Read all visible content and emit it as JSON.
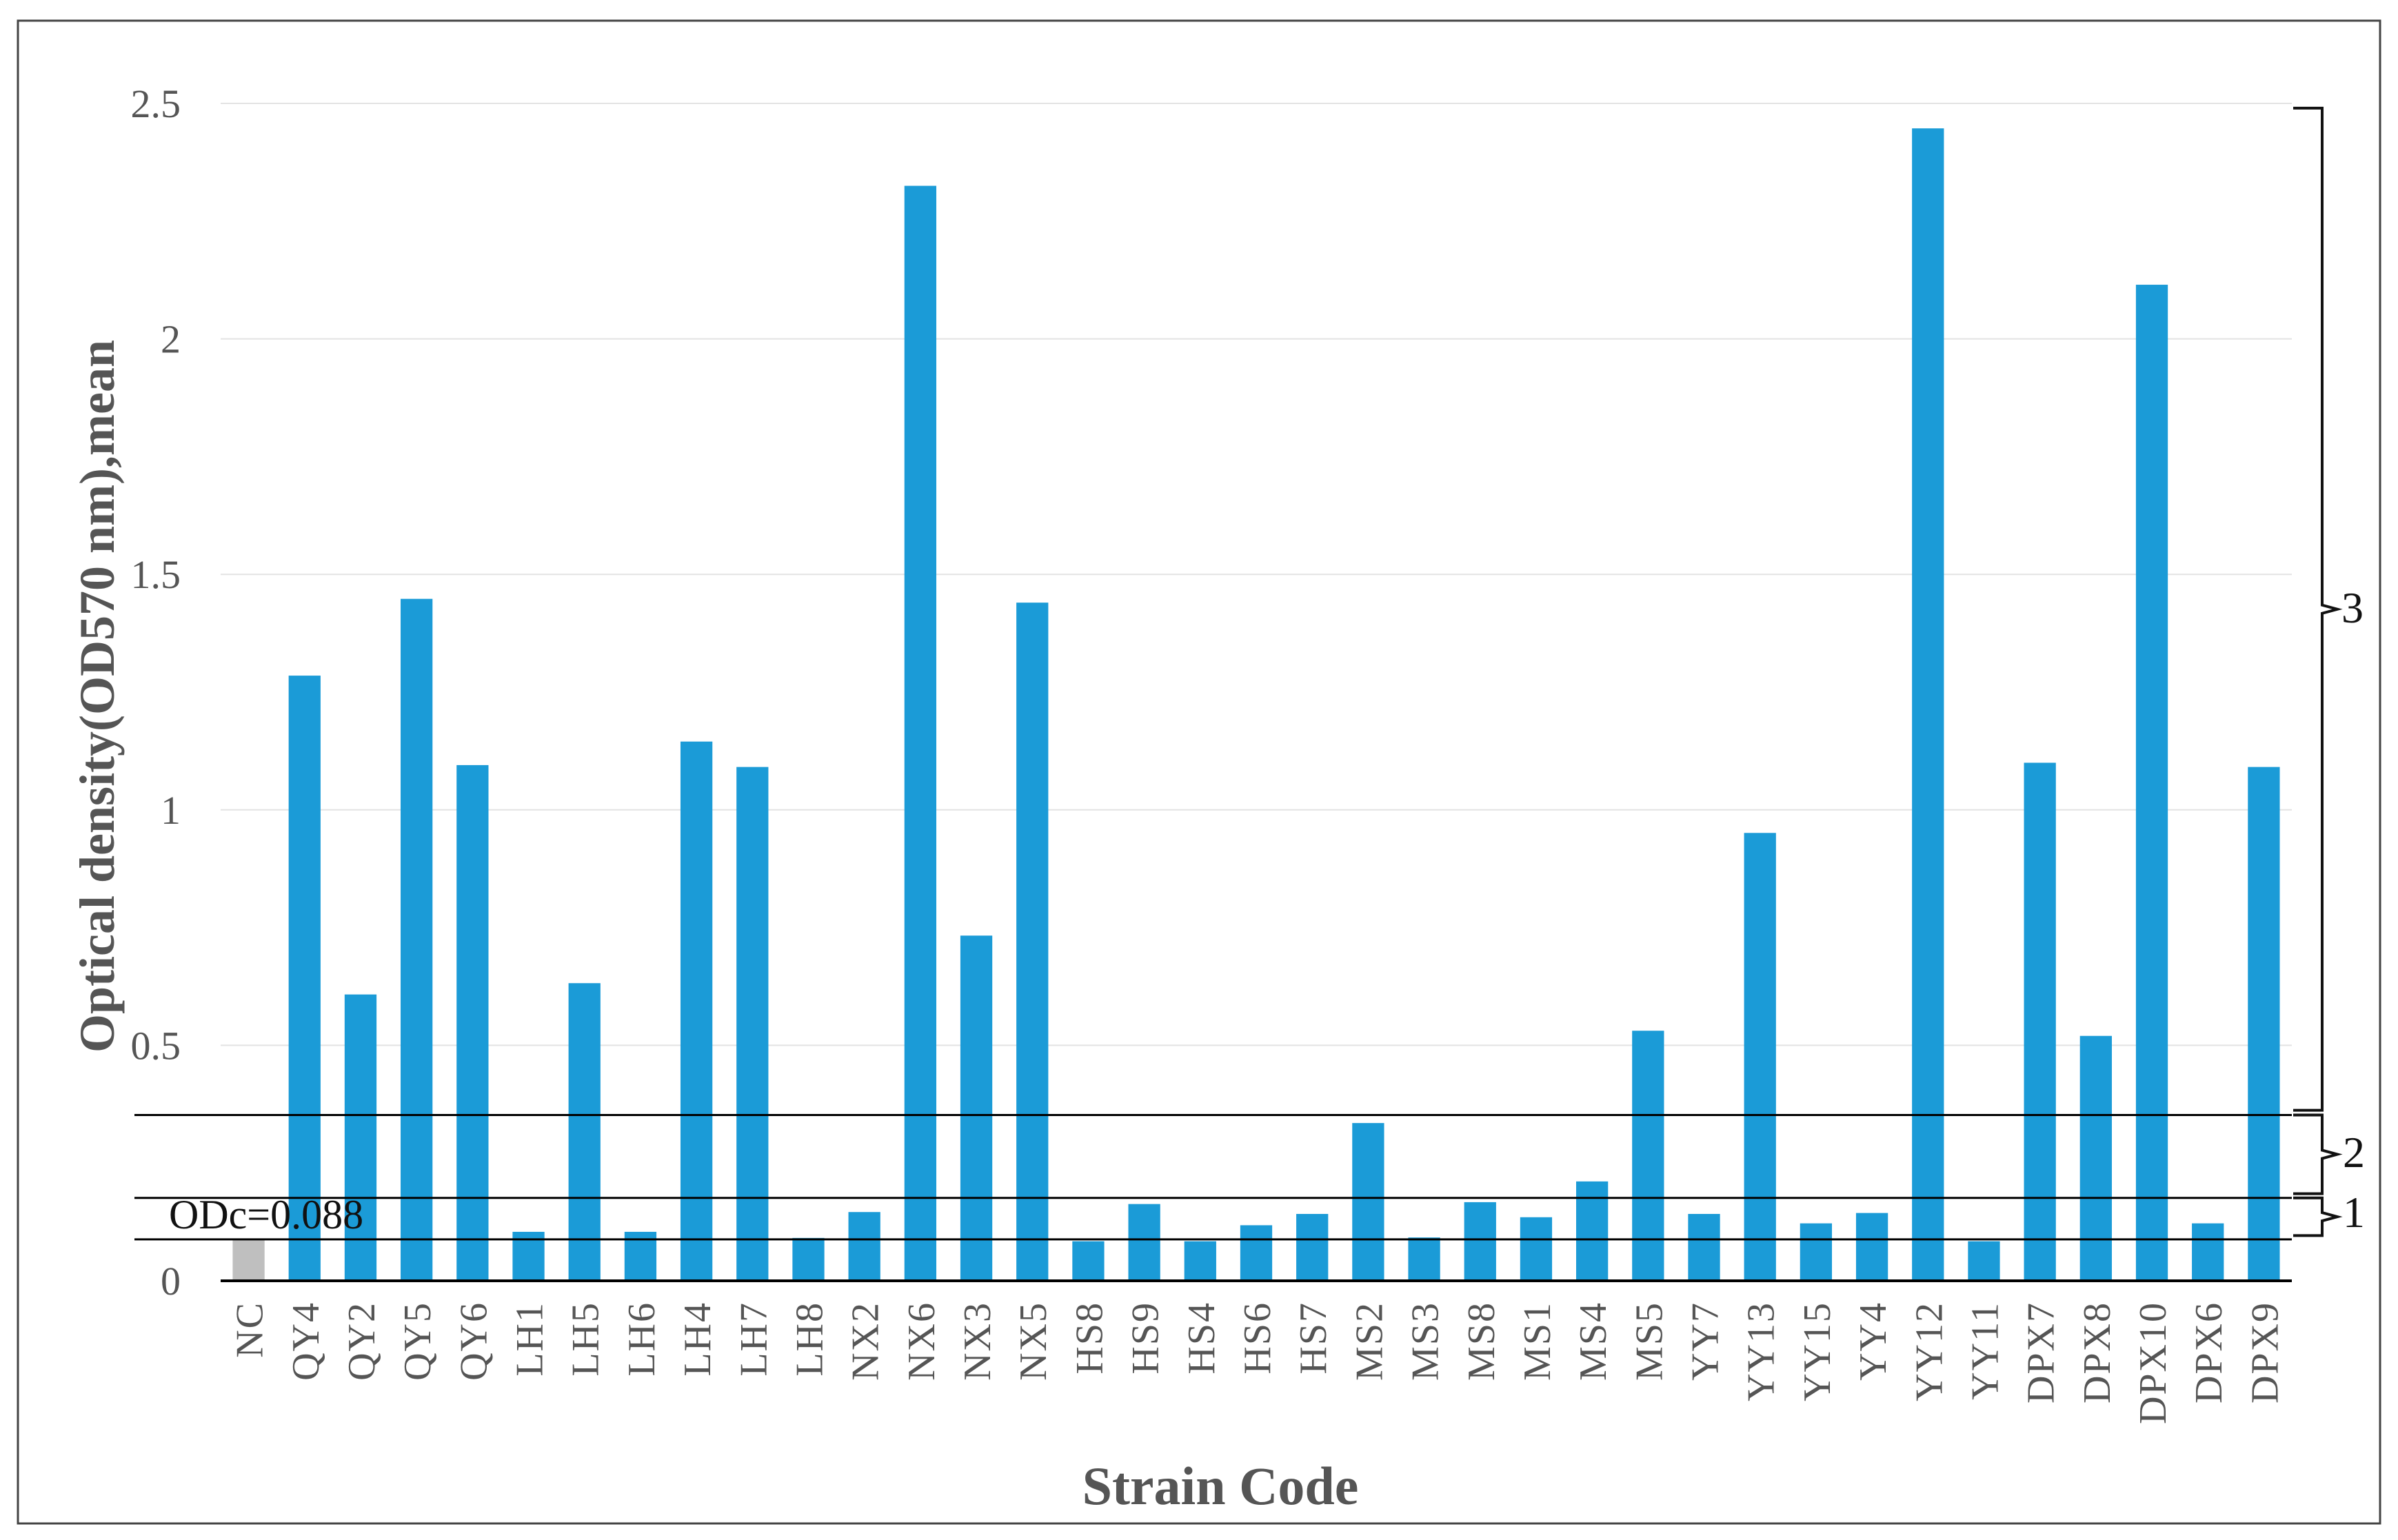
{
  "chart_data": {
    "type": "bar",
    "xlabel": "Strain Code",
    "ylabel": "Optical density(OD570 nm),mean",
    "ylim": [
      0,
      2.5
    ],
    "yticks": [
      "0",
      "0.5",
      "1",
      "1.5",
      "2",
      "2.5"
    ],
    "grid": true,
    "categories": [
      "NC",
      "QY4",
      "QY2",
      "QY5",
      "QY6",
      "LH1",
      "LH5",
      "LH6",
      "LH4",
      "LH7",
      "LH8",
      "NX2",
      "NX6",
      "NX3",
      "NX5",
      "HS8",
      "HS9",
      "HS4",
      "HS6",
      "HS7",
      "MS2",
      "MS3",
      "MS8",
      "MS1",
      "MS4",
      "MS5",
      "YY7",
      "YY13",
      "YY15",
      "YY4",
      "YY12",
      "YY11",
      "DPX7",
      "DPX8",
      "DPX10",
      "DPX6",
      "DPX9"
    ],
    "values": [
      0.088,
      1.285,
      0.608,
      1.448,
      1.095,
      0.104,
      0.632,
      0.104,
      1.145,
      1.091,
      0.091,
      0.146,
      2.325,
      0.733,
      1.44,
      0.084,
      0.163,
      0.084,
      0.118,
      0.142,
      0.335,
      0.092,
      0.167,
      0.135,
      0.211,
      0.531,
      0.142,
      0.951,
      0.122,
      0.144,
      2.447,
      0.084,
      1.1,
      0.52,
      2.115,
      0.122,
      1.091
    ],
    "colors": {
      "bar": "#1b9bd7",
      "nc_bar": "#bfbfbf",
      "grid": "#e3e3e3",
      "axis": "#000000"
    },
    "threshold_lines": [
      0.088,
      0.176,
      0.352
    ],
    "annotations": {
      "odc": "ODc=0.088",
      "group_1": "1",
      "group_2": "2",
      "group_3": "3"
    }
  }
}
